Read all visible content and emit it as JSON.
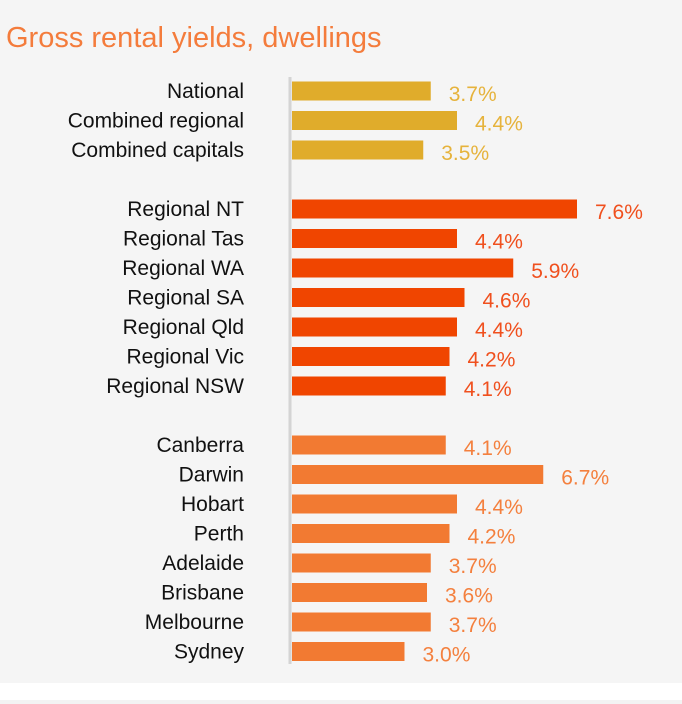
{
  "chart_data": {
    "type": "bar",
    "orientation": "horizontal",
    "title": "Gross rental yields, dwellings",
    "xlabel": "",
    "ylabel": "",
    "xlim": [
      0,
      8
    ],
    "grid": false,
    "unit": "%",
    "groups": [
      {
        "name": "aggregates",
        "color": "#e0ac2b",
        "label_color": "#e6b33c",
        "categories": [
          "National",
          "Combined regional",
          "Combined capitals"
        ],
        "values": [
          3.7,
          4.4,
          3.5
        ],
        "labels": [
          "3.7%",
          "4.4%",
          "3.5%"
        ]
      },
      {
        "name": "regional",
        "color": "#f04500",
        "label_color": "#f0501e",
        "categories": [
          "Regional NT",
          "Regional Tas",
          "Regional WA",
          "Regional SA",
          "Regional Qld",
          "Regional Vic",
          "Regional NSW"
        ],
        "values": [
          7.6,
          4.4,
          5.9,
          4.6,
          4.4,
          4.2,
          4.1
        ],
        "labels": [
          "7.6%",
          "4.4%",
          "5.9%",
          "4.6%",
          "4.4%",
          "4.2%",
          "4.1%"
        ]
      },
      {
        "name": "capitals",
        "color": "#f27a32",
        "label_color": "#f4803e",
        "categories": [
          "Canberra",
          "Darwin",
          "Hobart",
          "Perth",
          "Adelaide",
          "Brisbane",
          "Melbourne",
          "Sydney"
        ],
        "values": [
          4.1,
          6.7,
          4.4,
          4.2,
          3.7,
          3.6,
          3.7,
          3.0
        ],
        "labels": [
          "4.1%",
          "6.7%",
          "4.4%",
          "4.2%",
          "3.7%",
          "3.6%",
          "3.7%",
          "3.0%"
        ]
      }
    ]
  }
}
